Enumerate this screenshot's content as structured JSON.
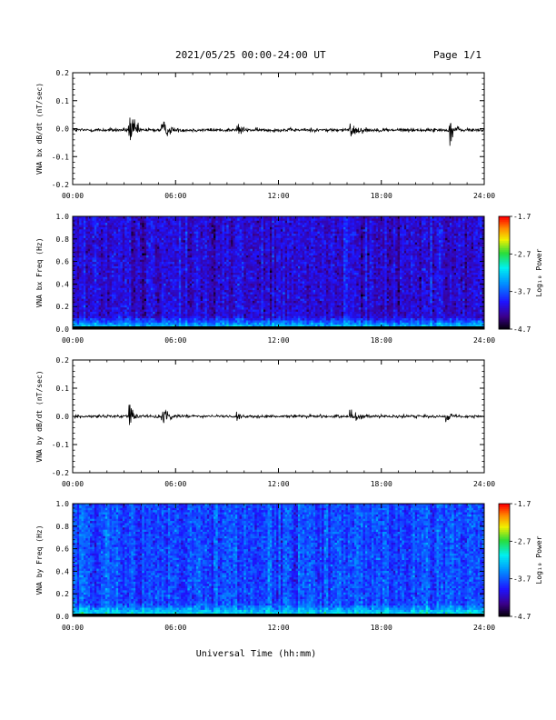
{
  "header": {
    "title": "2021/05/25  00:00-24:00 UT",
    "page": "Page 1/1"
  },
  "xaxis_label": "Universal Time (hh:mm)",
  "chart_data": [
    {
      "type": "line",
      "ylabel": "VNA bx dB/dt (nT/sec)",
      "ylim": [
        -0.2,
        0.2
      ],
      "yticks": [
        "0.2",
        "0.1",
        "0.0",
        "-0.1",
        "-0.2"
      ],
      "x_ticks": [
        "00:00",
        "06:00",
        "12:00",
        "18:00",
        "24:00"
      ],
      "xlim_hours": [
        0,
        24
      ],
      "baseline": -0.005,
      "noise_amplitude": 0.006,
      "bursts": [
        {
          "t": 3.3,
          "amp": 0.065,
          "dur": 0.7
        },
        {
          "t": 5.2,
          "amp": 0.035,
          "dur": 0.8
        },
        {
          "t": 9.6,
          "amp": 0.035,
          "dur": 0.4
        },
        {
          "t": 16.2,
          "amp": 0.02,
          "dur": 1.0
        },
        {
          "t": 22.0,
          "amp": 0.05,
          "dur": 0.6
        }
      ]
    },
    {
      "type": "heatmap",
      "ylabel": "VNA bx Freq (Hz)",
      "ylim": [
        0.0,
        1.0
      ],
      "yticks": [
        "1.0",
        "0.8",
        "0.6",
        "0.4",
        "0.2",
        "0.0"
      ],
      "x_ticks": [
        "00:00",
        "06:00",
        "12:00",
        "18:00",
        "24:00"
      ],
      "colorbar": {
        "label": "Log₁₀ Power",
        "ticks": [
          "-1.7",
          "-2.7",
          "-3.7",
          "-4.7"
        ],
        "range": [
          -4.7,
          -1.7
        ]
      },
      "base_level": -4.1,
      "low_freq_boost": 1.3
    },
    {
      "type": "line",
      "ylabel": "VNA by dB/dt (nT/sec)",
      "ylim": [
        -0.2,
        0.2
      ],
      "yticks": [
        "0.2",
        "0.1",
        "0.0",
        "-0.1",
        "-0.2"
      ],
      "x_ticks": [
        "00:00",
        "06:00",
        "12:00",
        "18:00",
        "24:00"
      ],
      "xlim_hours": [
        0,
        24
      ],
      "baseline": 0.0,
      "noise_amplitude": 0.005,
      "bursts": [
        {
          "t": 3.3,
          "amp": 0.035,
          "dur": 0.5
        },
        {
          "t": 5.2,
          "amp": 0.03,
          "dur": 0.7
        },
        {
          "t": 9.6,
          "amp": 0.02,
          "dur": 0.4
        },
        {
          "t": 16.2,
          "amp": 0.02,
          "dur": 1.0
        },
        {
          "t": 21.8,
          "amp": 0.015,
          "dur": 0.6
        }
      ]
    },
    {
      "type": "heatmap",
      "ylabel": "VNA by Freq (Hz)",
      "ylim": [
        0.0,
        1.0
      ],
      "yticks": [
        "1.0",
        "0.8",
        "0.6",
        "0.4",
        "0.2",
        "0.0"
      ],
      "x_ticks": [
        "00:00",
        "06:00",
        "12:00",
        "18:00",
        "24:00"
      ],
      "colorbar": {
        "label": "Log₁₀ Power",
        "ticks": [
          "-1.7",
          "-2.7",
          "-3.7",
          "-4.7"
        ],
        "range": [
          -4.7,
          -1.7
        ]
      },
      "base_level": -3.75,
      "low_freq_boost": 1.0
    }
  ]
}
